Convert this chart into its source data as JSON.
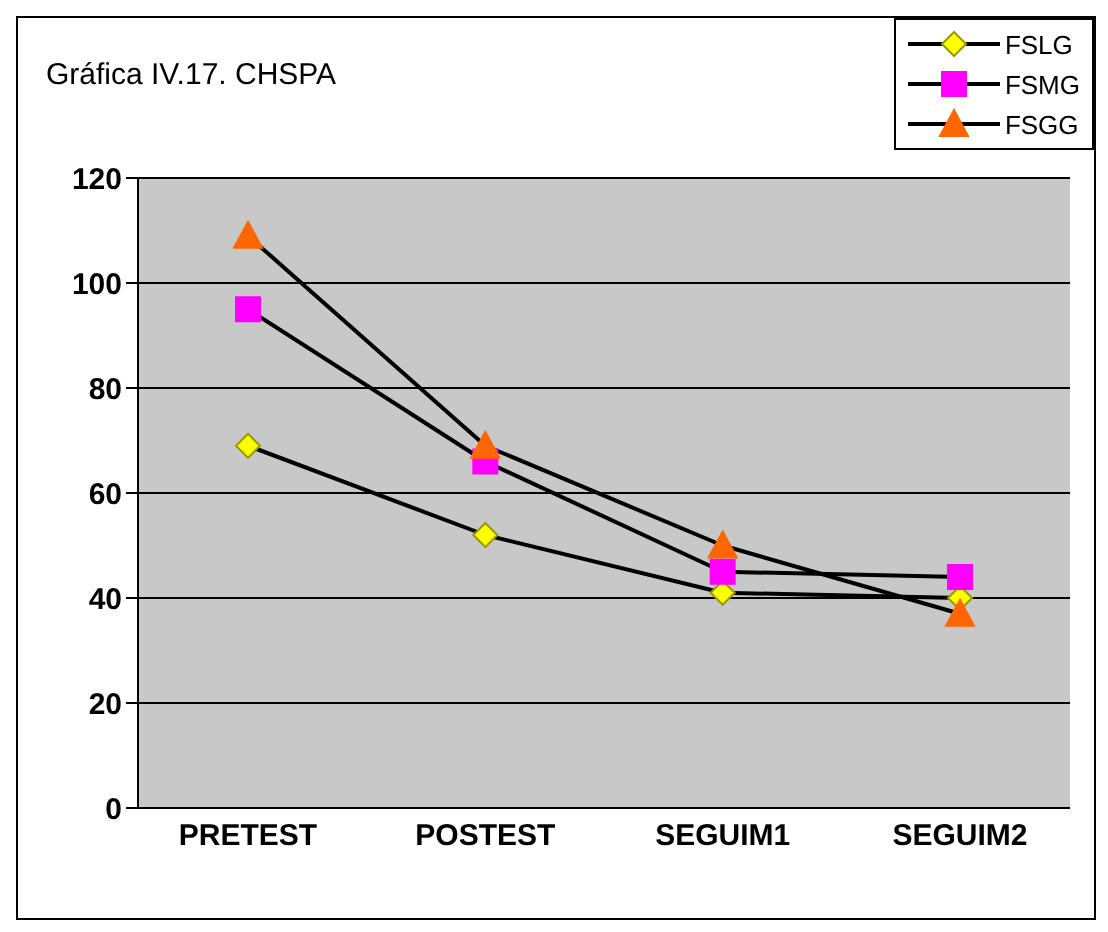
{
  "chart_data": {
    "type": "line",
    "title": "Gráfica IV.17. CHSPA",
    "categories": [
      "PRETEST",
      "POSTEST",
      "SEGUIM1",
      "SEGUIM2"
    ],
    "series": [
      {
        "name": "FSLG",
        "color": "#ffff00",
        "marker": "diamond",
        "values": [
          69,
          52,
          41,
          40
        ]
      },
      {
        "name": "FSMG",
        "color": "#ff00ff",
        "marker": "square",
        "values": [
          95,
          66,
          45,
          44
        ]
      },
      {
        "name": "FSGG",
        "color": "#ff6600",
        "marker": "triangle",
        "values": [
          109,
          69,
          50,
          37
        ]
      }
    ],
    "ylim": [
      0,
      120
    ],
    "yticks": [
      0,
      20,
      40,
      60,
      80,
      100,
      120
    ],
    "grid": "y",
    "legend": "top right"
  }
}
